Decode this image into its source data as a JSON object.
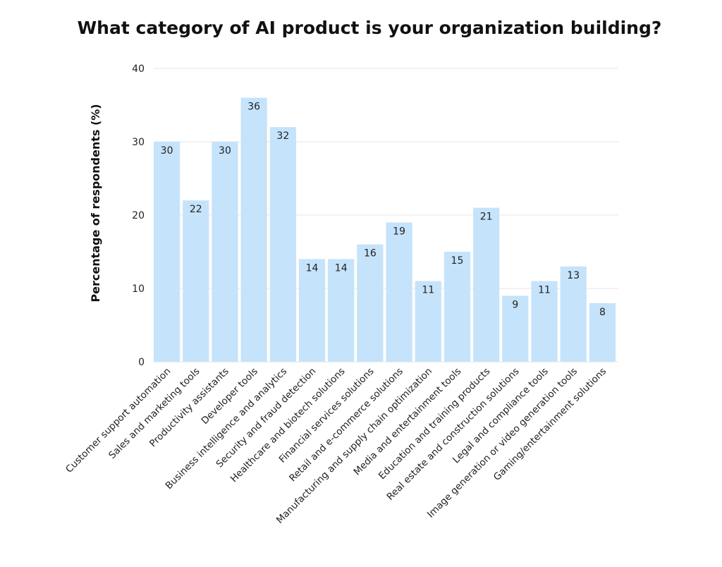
{
  "chart_data": {
    "type": "bar",
    "title": "What category of AI product is your organization building?",
    "xlabel": "",
    "ylabel": "Percentage of respondents (%)",
    "ylim": [
      0,
      40
    ],
    "yticks": [
      0,
      10,
      20,
      30,
      40
    ],
    "grid": true,
    "legend": "none",
    "bar_color": "#c5e3fb",
    "grid_color": "#e6e6e6",
    "categories": [
      "Customer support automation",
      "Sales and marketing tools",
      "Productivity assistants",
      "Developer tools",
      "Business intelligence and analytics",
      "Security and fraud detection",
      "Healthcare and biotech solutions",
      "Financial services solutions",
      "Retail and e-commerce solutions",
      "Manufacturing and supply chain optimization",
      "Media and entertainment tools",
      "Education and training products",
      "Real estate and construction solutions",
      "Legal and compliance tools",
      "Image generation or video generation tools",
      "Gaming/entertainment solutions"
    ],
    "values": [
      30,
      22,
      30,
      36,
      32,
      14,
      14,
      16,
      19,
      11,
      15,
      21,
      9,
      11,
      13,
      8
    ],
    "data_labels": true
  }
}
